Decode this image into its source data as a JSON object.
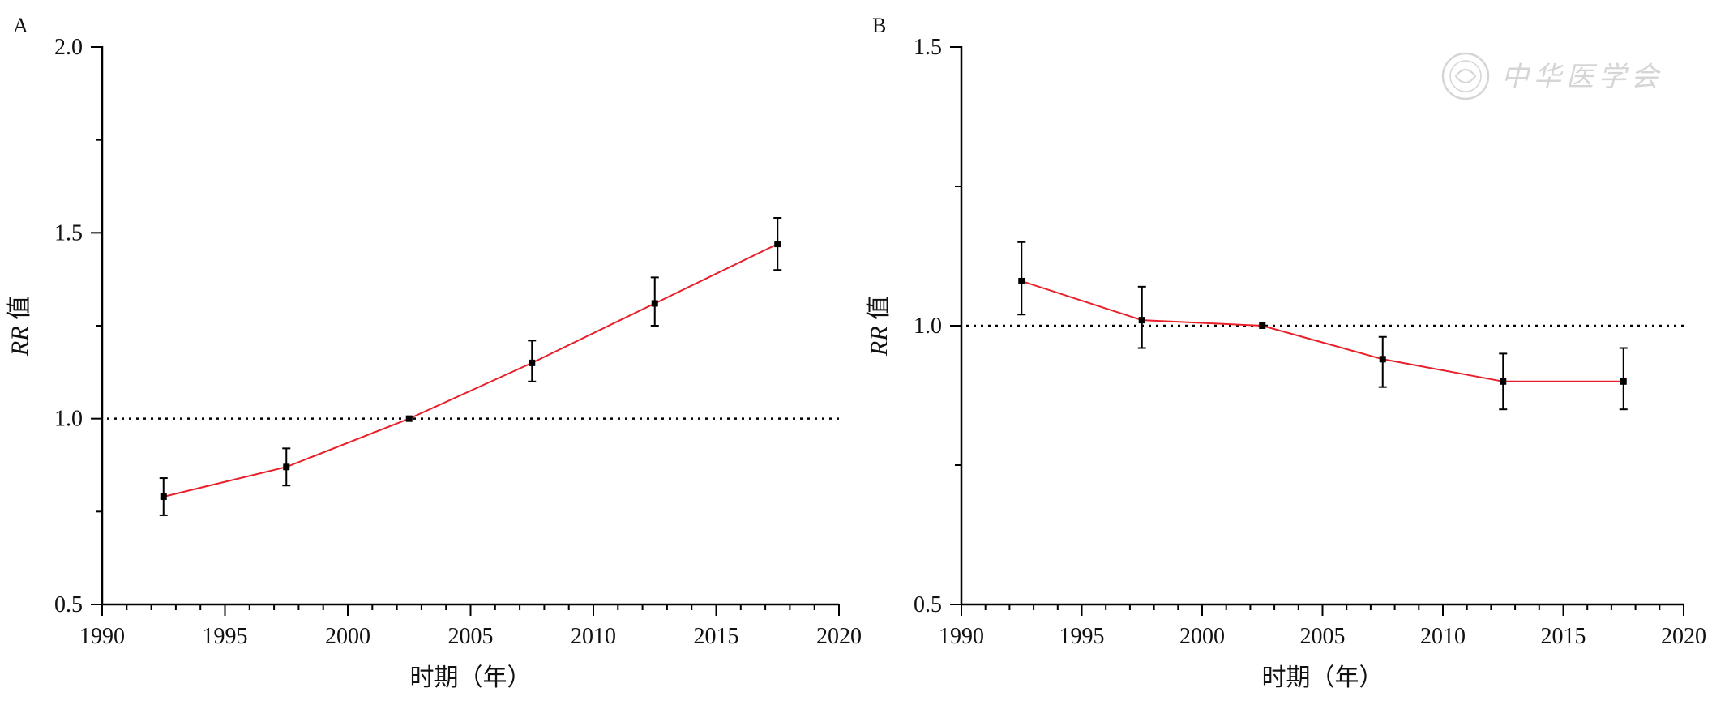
{
  "figure": {
    "watermark_text": "中华医学会",
    "ref_line_color": "#000000",
    "line_color": "#e8202a",
    "marker_color": "#000000"
  },
  "chart_data": [
    {
      "type": "line",
      "panel_label": "A",
      "xlabel": "时期（年）",
      "ylabel_italic": "RR",
      "ylabel_rest": " 值",
      "xlim": [
        1990,
        2020
      ],
      "ylim": [
        0.5,
        2.0
      ],
      "xticks": [
        1990,
        1995,
        2000,
        2005,
        2010,
        2015,
        2020
      ],
      "xtick_labels": [
        "1990",
        "1995",
        "2000",
        "2005",
        "2010",
        "2015",
        "2020"
      ],
      "yticks": [
        0.5,
        1.0,
        1.5,
        2.0
      ],
      "ytick_labels": [
        "0.5",
        "1.0",
        "1.5",
        "2.0"
      ],
      "reference_line": 1.0,
      "series": [
        {
          "x": [
            1992.5,
            1997.5,
            2002.5,
            2007.5,
            2012.5,
            2017.5
          ],
          "y": [
            0.79,
            0.87,
            1.0,
            1.15,
            1.31,
            1.47
          ],
          "err_low": [
            0.74,
            0.82,
            1.0,
            1.1,
            1.25,
            1.4
          ],
          "err_high": [
            0.84,
            0.92,
            1.0,
            1.21,
            1.38,
            1.54
          ]
        }
      ]
    },
    {
      "type": "line",
      "panel_label": "B",
      "xlabel": "时期（年）",
      "ylabel_italic": "RR",
      "ylabel_rest": " 值",
      "xlim": [
        1990,
        2020
      ],
      "ylim": [
        0.5,
        1.5
      ],
      "xticks": [
        1990,
        1995,
        2000,
        2005,
        2010,
        2015,
        2020
      ],
      "xtick_labels": [
        "1990",
        "1995",
        "2000",
        "2005",
        "2010",
        "2015",
        "2020"
      ],
      "yticks": [
        0.5,
        1.0,
        1.5
      ],
      "ytick_labels": [
        "0.5",
        "1.0",
        "1.5"
      ],
      "reference_line": 1.0,
      "series": [
        {
          "x": [
            1992.5,
            1997.5,
            2002.5,
            2007.5,
            2012.5,
            2017.5
          ],
          "y": [
            1.08,
            1.01,
            1.0,
            0.94,
            0.9,
            0.9
          ],
          "err_low": [
            1.02,
            0.96,
            1.0,
            0.89,
            0.85,
            0.85
          ],
          "err_high": [
            1.15,
            1.07,
            1.0,
            0.98,
            0.95,
            0.96
          ]
        }
      ]
    }
  ]
}
